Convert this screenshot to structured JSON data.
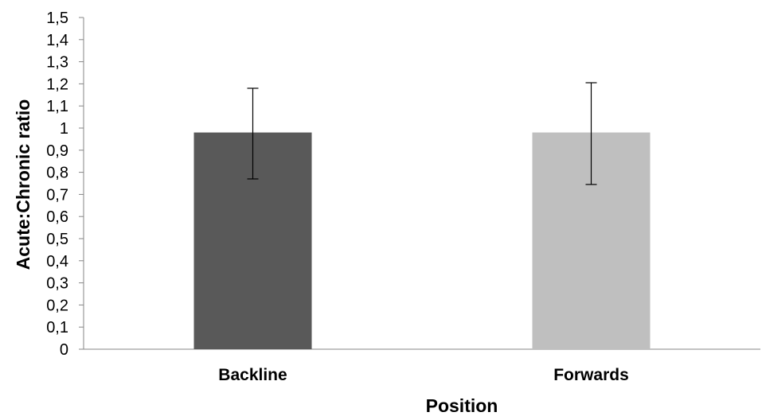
{
  "chart_data": {
    "type": "bar",
    "title": "",
    "xlabel": "Position",
    "ylabel": "Acute:Chronic ratio",
    "categories": [
      "Backline",
      "Forwards"
    ],
    "values": [
      0.98,
      0.98
    ],
    "error": [
      {
        "upper": 1.18,
        "lower": 0.77
      },
      {
        "upper": 1.205,
        "lower": 0.745
      }
    ],
    "colors": [
      "#595959",
      "#bfbfbf"
    ],
    "ylim": [
      0,
      1.5
    ],
    "y_ticks": [
      "0",
      "0,1",
      "0,2",
      "0,3",
      "0,4",
      "0,5",
      "0,6",
      "0,7",
      "0,8",
      "0,9",
      "1",
      "1,1",
      "1,2",
      "1,3",
      "1,4",
      "1,5"
    ],
    "grid": false,
    "legend": "none"
  }
}
